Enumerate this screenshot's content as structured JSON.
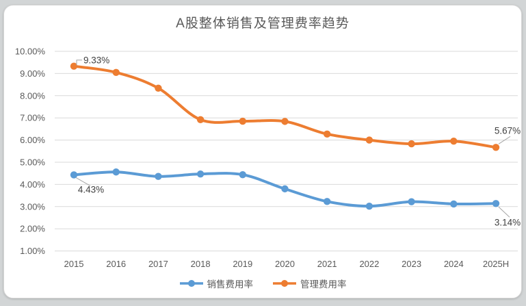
{
  "page": {
    "background_color": "#d2d5d6",
    "card_background": "#ffffff",
    "card_border_color": "#d6d6d6"
  },
  "chart_data": {
    "type": "line",
    "title": "A股整体销售及管理费率趋势",
    "categories": [
      "2015",
      "2016",
      "2017",
      "2018",
      "2019",
      "2020",
      "2021",
      "2022",
      "2023",
      "2024",
      "2025H"
    ],
    "series": [
      {
        "id": "sales-expense-rate",
        "name": "销售费用率",
        "color": "#5B9BD5",
        "values": [
          4.43,
          4.56,
          4.36,
          4.47,
          4.44,
          3.8,
          3.23,
          3.02,
          3.22,
          3.12,
          3.14
        ]
      },
      {
        "id": "management-expense-rate",
        "name": "管理费用率",
        "color": "#ED7D31",
        "values": [
          9.33,
          9.05,
          8.34,
          6.92,
          6.85,
          6.84,
          6.27,
          6.0,
          5.83,
          5.95,
          5.67
        ]
      }
    ],
    "y_axis": {
      "min": 1,
      "max": 10,
      "tick_step": 1,
      "tick_labels": [
        "10.00%",
        "9.00%",
        "8.00%",
        "7.00%",
        "6.00%",
        "5.00%",
        "4.00%",
        "3.00%",
        "2.00%",
        "1.00%"
      ]
    },
    "annotations": [
      {
        "text": "9.33%",
        "series": 1,
        "point": 0,
        "placement": "elbow-top"
      },
      {
        "text": "4.43%",
        "series": 0,
        "point": 0,
        "placement": "below"
      },
      {
        "text": "5.67%",
        "series": 1,
        "point": 10,
        "placement": "above"
      },
      {
        "text": "3.14%",
        "series": 0,
        "point": 10,
        "placement": "below-far"
      }
    ],
    "legend": {
      "position": "bottom",
      "items": [
        "销售费用率",
        "管理费用率"
      ]
    },
    "grid": true,
    "styles": {
      "grid_color": "#d9d9d9",
      "tick_color": "#595959",
      "title_color": "#595959",
      "annotation_color": "#404040",
      "leader_color": "#a6a6a6"
    }
  }
}
